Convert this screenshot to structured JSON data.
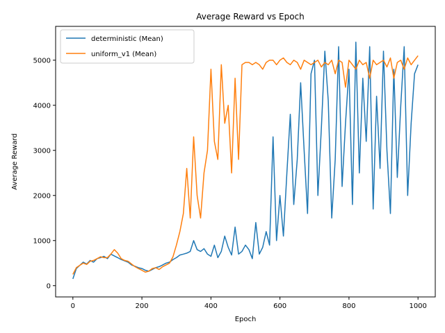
{
  "chart_data": {
    "type": "line",
    "title": "Average Reward vs Epoch",
    "xlabel": "Epoch",
    "ylabel": "Average Reward",
    "xlim": [
      -50,
      1050
    ],
    "ylim": [
      -250,
      5750
    ],
    "xticks": [
      0,
      200,
      400,
      600,
      800,
      1000
    ],
    "yticks": [
      0,
      1000,
      2000,
      3000,
      4000,
      5000
    ],
    "legend_position": "top-left",
    "grid": false,
    "series": [
      {
        "name": "deterministic (Mean)",
        "color": "#1f77b4",
        "x": [
          0,
          10,
          20,
          30,
          40,
          50,
          60,
          70,
          80,
          90,
          100,
          110,
          120,
          130,
          140,
          150,
          160,
          170,
          180,
          190,
          200,
          210,
          220,
          230,
          240,
          250,
          260,
          270,
          280,
          290,
          300,
          310,
          320,
          330,
          340,
          350,
          360,
          370,
          380,
          390,
          400,
          410,
          420,
          430,
          440,
          450,
          460,
          470,
          480,
          490,
          500,
          510,
          520,
          530,
          540,
          550,
          560,
          570,
          580,
          590,
          600,
          610,
          620,
          630,
          640,
          650,
          660,
          670,
          680,
          690,
          700,
          710,
          720,
          730,
          740,
          750,
          760,
          770,
          780,
          790,
          800,
          810,
          820,
          830,
          840,
          850,
          860,
          870,
          880,
          890,
          900,
          910,
          920,
          930,
          940,
          950,
          960,
          970,
          980,
          990,
          1000
        ],
        "values": [
          150,
          380,
          450,
          520,
          480,
          560,
          520,
          600,
          620,
          650,
          600,
          700,
          660,
          620,
          580,
          550,
          520,
          460,
          430,
          400,
          380,
          340,
          320,
          360,
          400,
          420,
          460,
          500,
          520,
          580,
          620,
          680,
          700,
          720,
          760,
          1000,
          800,
          760,
          820,
          700,
          650,
          900,
          620,
          760,
          1100,
          850,
          680,
          1300,
          700,
          760,
          900,
          800,
          600,
          1400,
          700,
          850,
          1200,
          900,
          3300,
          1000,
          2000,
          1100,
          2500,
          3800,
          1800,
          2800,
          4500,
          3000,
          1600,
          4700,
          5000,
          2000,
          3500,
          5200,
          4100,
          1500,
          2800,
          5300,
          2200,
          3600,
          4800,
          1800,
          5400,
          2500,
          4600,
          3200,
          5300,
          1700,
          4200,
          2600,
          5200,
          3000,
          1600,
          4800,
          2400,
          4000,
          5300,
          2000,
          3600,
          4700,
          4900
        ]
      },
      {
        "name": "uniform_v1 (Mean)",
        "color": "#ff7f0e",
        "x": [
          0,
          10,
          20,
          30,
          40,
          50,
          60,
          70,
          80,
          90,
          100,
          110,
          120,
          130,
          140,
          150,
          160,
          170,
          180,
          190,
          200,
          210,
          220,
          230,
          240,
          250,
          260,
          270,
          280,
          290,
          300,
          310,
          320,
          330,
          340,
          350,
          360,
          370,
          380,
          390,
          400,
          410,
          420,
          430,
          440,
          450,
          460,
          470,
          480,
          490,
          500,
          510,
          520,
          530,
          540,
          550,
          560,
          570,
          580,
          590,
          600,
          610,
          620,
          630,
          640,
          650,
          660,
          670,
          680,
          690,
          700,
          710,
          720,
          730,
          740,
          750,
          760,
          770,
          780,
          790,
          800,
          810,
          820,
          830,
          840,
          850,
          860,
          870,
          880,
          890,
          900,
          910,
          920,
          930,
          940,
          950,
          960,
          970,
          980,
          990,
          1000
        ],
        "values": [
          250,
          400,
          450,
          500,
          470,
          540,
          560,
          600,
          640,
          620,
          620,
          700,
          800,
          720,
          600,
          560,
          540,
          480,
          420,
          380,
          340,
          300,
          320,
          380,
          400,
          360,
          420,
          460,
          500,
          640,
          900,
          1200,
          1600,
          2600,
          1500,
          3300,
          2000,
          1500,
          2500,
          3000,
          4800,
          3200,
          2800,
          4900,
          3600,
          4000,
          2500,
          4600,
          2800,
          4900,
          4950,
          4950,
          4900,
          4950,
          4900,
          4800,
          4950,
          5000,
          5000,
          4900,
          5000,
          5050,
          4950,
          4900,
          5000,
          4950,
          4800,
          5000,
          4950,
          4900,
          4950,
          5000,
          4850,
          4950,
          4900,
          5000,
          4700,
          5000,
          4950,
          4400,
          5000,
          4900,
          4800,
          5000,
          4900,
          4950,
          4600,
          5000,
          4900,
          4950,
          5000,
          4850,
          5050,
          4600,
          4950,
          5000,
          4800,
          5050,
          4900,
          5000,
          5100
        ]
      }
    ]
  }
}
